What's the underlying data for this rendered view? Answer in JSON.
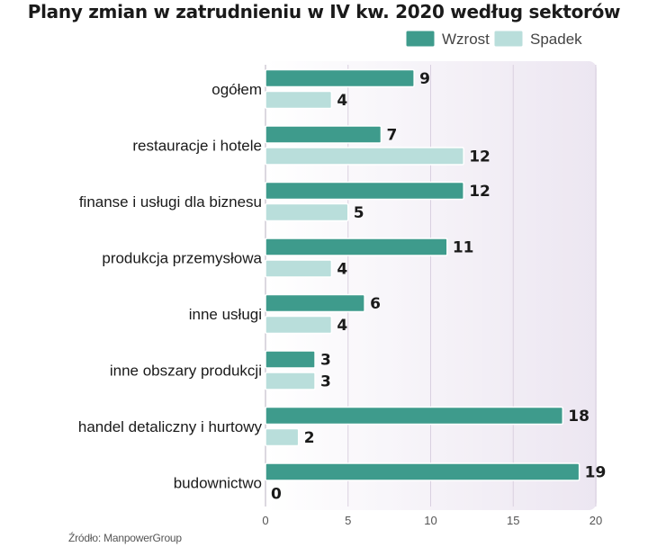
{
  "chart_data": {
    "type": "bar",
    "orientation": "horizontal",
    "title": "Plany zmian w zatrudnieniu w IV kw. 2020 według sektorów",
    "categories": [
      "ogółem",
      "restauracje i hotele",
      "finanse i usługi dla biznesu",
      "produkcja przemysłowa",
      "inne usługi",
      "inne obszary produkcji",
      "handel detaliczny i hurtowy",
      "budownictwo"
    ],
    "series": [
      {
        "name": "Wzrost",
        "color": "#3e9b8c",
        "values": [
          9,
          7,
          12,
          11,
          6,
          3,
          18,
          19
        ]
      },
      {
        "name": "Spadek",
        "color": "#b9dedb",
        "values": [
          4,
          12,
          5,
          4,
          4,
          3,
          2,
          0
        ]
      }
    ],
    "xlim": [
      0,
      20
    ],
    "xticks": [
      0,
      5,
      10,
      15,
      20
    ],
    "legend_position": "top-right",
    "grid": true,
    "source": "Źródło: ManpowerGroup"
  }
}
